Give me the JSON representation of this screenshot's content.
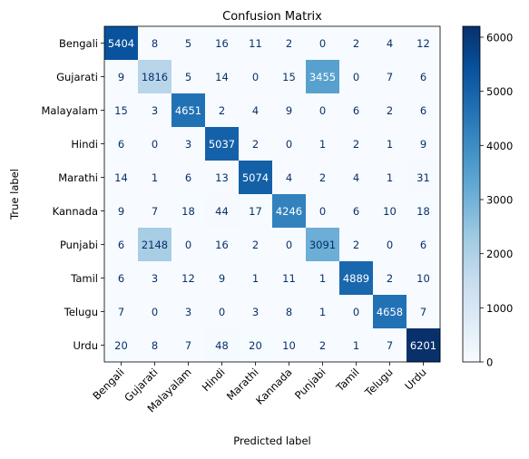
{
  "chart_data": {
    "type": "heatmap",
    "title": "Confusion Matrix",
    "xlabel": "Predicted label",
    "ylabel": "True label",
    "labels": [
      "Bengali",
      "Gujarati",
      "Malayalam",
      "Hindi",
      "Marathi",
      "Kannada",
      "Punjabi",
      "Tamil",
      "Telugu",
      "Urdu"
    ],
    "matrix": [
      [
        5404,
        8,
        5,
        16,
        11,
        2,
        0,
        2,
        4,
        12
      ],
      [
        9,
        1816,
        5,
        14,
        0,
        15,
        3455,
        0,
        7,
        6
      ],
      [
        15,
        3,
        4651,
        2,
        4,
        9,
        0,
        6,
        2,
        6
      ],
      [
        6,
        0,
        3,
        5037,
        2,
        0,
        1,
        2,
        1,
        9
      ],
      [
        14,
        1,
        6,
        13,
        5074,
        4,
        2,
        4,
        1,
        31
      ],
      [
        9,
        7,
        18,
        44,
        17,
        4246,
        0,
        6,
        10,
        18
      ],
      [
        6,
        2148,
        0,
        16,
        2,
        0,
        3091,
        2,
        0,
        6
      ],
      [
        6,
        3,
        12,
        9,
        1,
        11,
        1,
        4889,
        2,
        10
      ],
      [
        7,
        0,
        3,
        0,
        3,
        8,
        1,
        0,
        4658,
        7
      ],
      [
        20,
        8,
        7,
        48,
        20,
        10,
        2,
        1,
        7,
        6201
      ]
    ],
    "colormap": "Blues",
    "colorbar": {
      "range": [
        0,
        6201
      ],
      "ticks": [
        0,
        1000,
        2000,
        3000,
        4000,
        5000,
        6000
      ]
    },
    "grid": false
  }
}
